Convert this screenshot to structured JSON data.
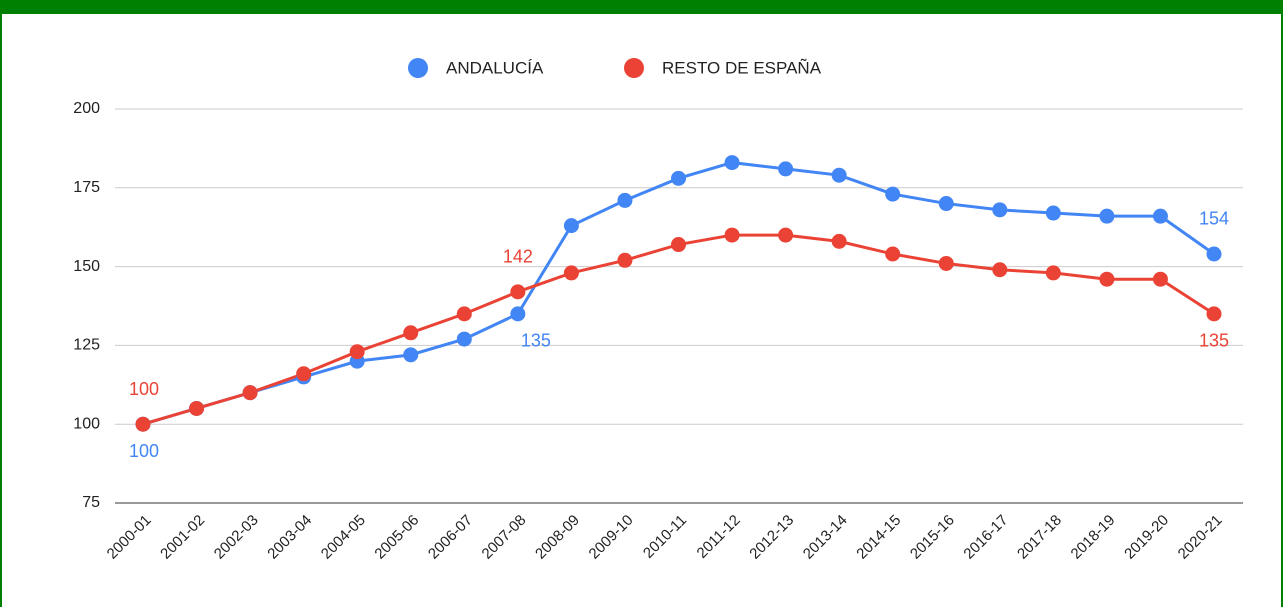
{
  "chart_data": {
    "type": "line",
    "categories": [
      "2000-01",
      "2001-02",
      "2002-03",
      "2003-04",
      "2004-05",
      "2005-06",
      "2006-07",
      "2007-08",
      "2008-09",
      "2009-10",
      "2010-11",
      "2011-12",
      "2012-13",
      "2013-14",
      "2014-15",
      "2015-16",
      "2016-17",
      "2017-18",
      "2018-19",
      "2019-20",
      "2020-21"
    ],
    "series": [
      {
        "name": "ANDALUCÍA",
        "color": "#4285f4",
        "values": [
          100,
          105,
          110,
          115,
          120,
          122,
          127,
          135,
          163,
          171,
          178,
          183,
          181,
          179,
          173,
          170,
          168,
          167,
          166,
          166,
          154
        ]
      },
      {
        "name": "RESTO DE ESPAÑA",
        "color": "#ea4335",
        "values": [
          100,
          105,
          110,
          116,
          123,
          129,
          135,
          142,
          148,
          152,
          157,
          160,
          160,
          158,
          154,
          151,
          149,
          148,
          146,
          146,
          135
        ]
      }
    ],
    "labels_at": [
      0,
      7,
      20
    ],
    "ylim": [
      75,
      200
    ],
    "yticks": [
      75,
      100,
      125,
      150,
      175,
      200
    ],
    "grid": true,
    "legend": "top"
  }
}
